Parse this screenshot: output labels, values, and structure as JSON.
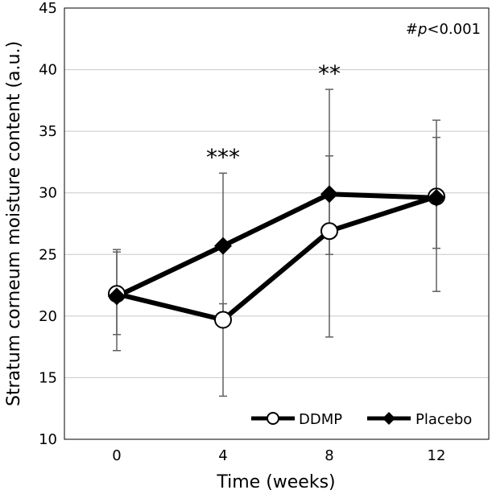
{
  "chart_data": {
    "type": "line",
    "xlabel": "Time (weeks)",
    "ylabel": "Stratum corneum moisture content (a.u.)",
    "ylim": [
      10,
      45
    ],
    "yticks": [
      "10",
      "15",
      "20",
      "25",
      "30",
      "35",
      "40",
      "45"
    ],
    "categories": [
      "0",
      "4",
      "8",
      "12"
    ],
    "grid": "horizontal",
    "legend_position": "bottom-right",
    "series": [
      {
        "name": "DDMP",
        "marker": "open-circle",
        "color": "#000000",
        "values": [
          21.8,
          19.7,
          26.9,
          29.7
        ],
        "error_low": [
          17.2,
          13.5,
          18.3,
          22.0
        ],
        "error_high": [
          25.4,
          21.0,
          33.0,
          35.9
        ]
      },
      {
        "name": "Placebo",
        "marker": "filled-diamond",
        "color": "#000000",
        "values": [
          21.6,
          25.7,
          29.9,
          29.6
        ],
        "error_low": [
          18.5,
          20.0,
          25.0,
          25.5
        ],
        "error_high": [
          25.2,
          31.6,
          38.4,
          34.5
        ]
      }
    ],
    "annotations": [
      {
        "category": "4",
        "text": "***"
      },
      {
        "category": "8",
        "text": "**"
      }
    ],
    "pvalue_prefix": "#",
    "pvalue_var": "p",
    "pvalue_rest": "<0.001"
  }
}
